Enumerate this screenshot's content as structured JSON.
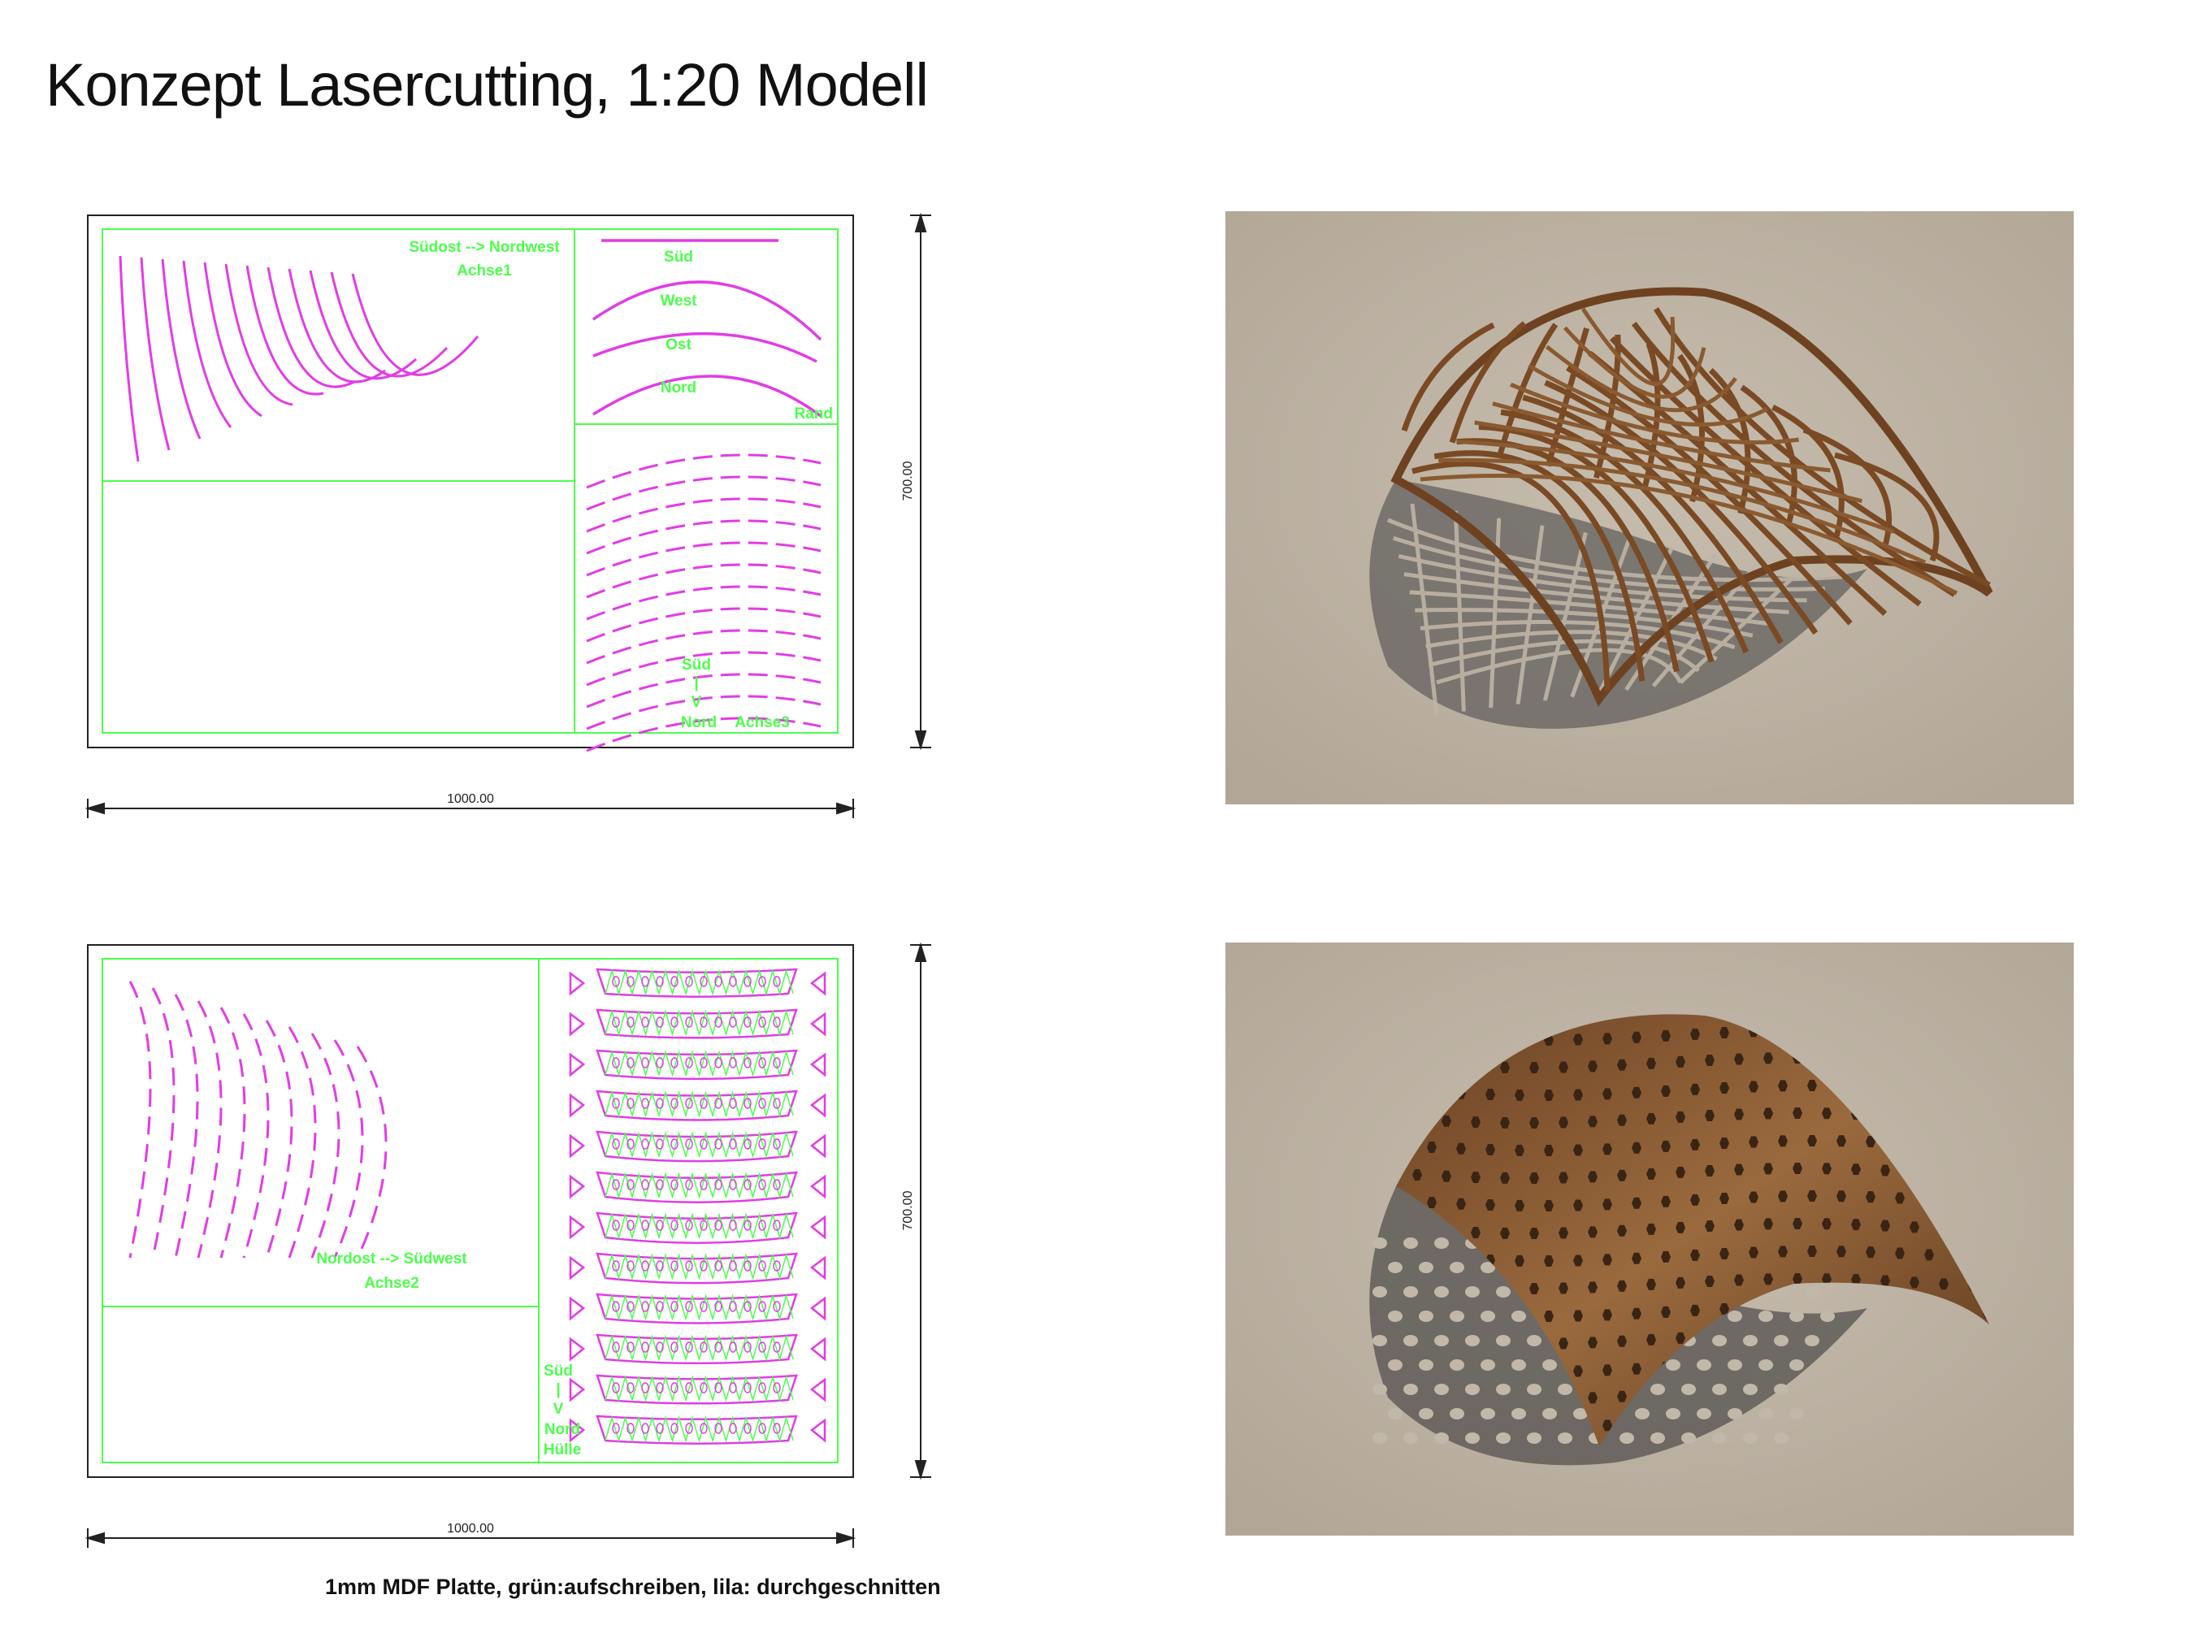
{
  "title": "Konzept Lasercutting, 1:20 Modell",
  "footer_note": "1mm MDF Platte, grün:aufschreiben, lila: durchgeschnitten",
  "colors": {
    "engrave": "#4cff4c",
    "cut": "#e23ce6",
    "frame": "#222222",
    "render_bg": "#bfb5a6",
    "wood": "#7a4a24"
  },
  "sheet1": {
    "width_label": "1000.00",
    "height_label": "700.00",
    "axis1_label_a": "Südost  --> Nordwest",
    "axis1_label_b": "Achse1",
    "rand_labels": [
      "Süd",
      "West",
      "Ost",
      "Nord"
    ],
    "rand_label": "Rand",
    "axis3_labels": [
      "Süd",
      "|",
      "V",
      "Nord",
      "Achse3"
    ]
  },
  "sheet2": {
    "width_label": "1000.00",
    "height_label": "700.00",
    "axis2_label_a": "Nordost  --> Südwest",
    "axis2_label_b": "Achse2",
    "huelle_labels": [
      "Süd",
      "|",
      "V",
      "Nord",
      "Hülle"
    ]
  },
  "renders": [
    {
      "name": "gridshell-frame-render",
      "style": "timber lattice"
    },
    {
      "name": "perforated-shell-render",
      "style": "perforated shell"
    }
  ]
}
